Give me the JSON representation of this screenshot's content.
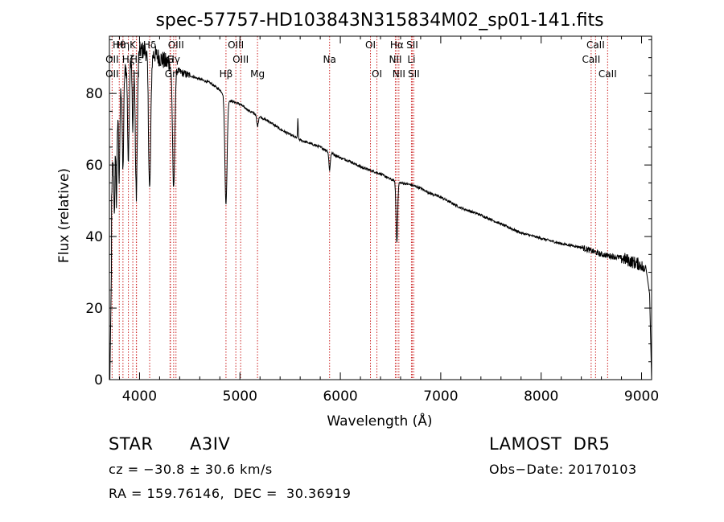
{
  "chart_data": {
    "type": "line",
    "title": "spec-57757-HD103843N315834M02_sp01-141.fits",
    "xlabel": "Wavelength (Å)",
    "ylabel": "Flux (relative)",
    "xlim": [
      3700,
      9100
    ],
    "ylim": [
      0,
      96
    ],
    "x_ticks": [
      4000,
      5000,
      6000,
      7000,
      8000,
      9000
    ],
    "y_ticks": [
      0,
      20,
      40,
      60,
      80
    ],
    "grid": false,
    "line_color": "#000000",
    "marker_color": "#cc2222",
    "continuum": {
      "x": [
        3700,
        3730,
        3760,
        3800,
        3850,
        3900,
        3950,
        4000,
        4050,
        4100,
        4150,
        4200,
        4250,
        4300,
        4350,
        4400,
        4450,
        4500,
        4600,
        4700,
        4800,
        4900,
        5000,
        5100,
        5200,
        5300,
        5400,
        5500,
        5600,
        5700,
        5800,
        5900,
        6000,
        6100,
        6200,
        6300,
        6400,
        6500,
        6600,
        6700,
        6800,
        6900,
        7000,
        7200,
        7400,
        7600,
        7800,
        8000,
        8200,
        8400,
        8600,
        8800,
        8900,
        9000,
        9030
      ],
      "y": [
        30,
        58,
        68,
        80,
        86,
        90,
        91,
        92,
        92,
        91,
        91,
        90,
        89,
        88,
        87,
        86,
        85.5,
        85,
        84,
        83,
        81,
        78,
        77,
        75,
        73.5,
        72,
        70,
        68.5,
        67,
        66,
        65,
        63.5,
        62,
        61,
        59.5,
        58.5,
        57.5,
        56,
        55,
        54.5,
        53.5,
        52,
        51,
        48,
        46,
        43.5,
        41,
        39.5,
        38,
        37,
        35,
        34,
        33,
        32,
        30
      ]
    },
    "absorption": [
      {
        "x": 3750,
        "depth": 20,
        "width": 5
      },
      {
        "x": 3771,
        "depth": 22,
        "width": 5
      },
      {
        "x": 3798,
        "depth": 24,
        "width": 6
      },
      {
        "x": 3835,
        "depth": 26,
        "width": 7
      },
      {
        "x": 3889,
        "depth": 28,
        "width": 8
      },
      {
        "x": 3933,
        "depth": 22,
        "width": 6
      },
      {
        "x": 3968,
        "depth": 40,
        "width": 10
      },
      {
        "x": 4101,
        "depth": 38,
        "width": 11
      },
      {
        "x": 4340,
        "depth": 34,
        "width": 11
      },
      {
        "x": 4861,
        "depth": 30,
        "width": 11
      },
      {
        "x": 5175,
        "depth": 3,
        "width": 8
      },
      {
        "x": 5893,
        "depth": 5,
        "width": 7
      },
      {
        "x": 6563,
        "depth": 17,
        "width": 8
      }
    ],
    "emission": [
      {
        "x": 5577,
        "height": 6,
        "width": 3
      }
    ],
    "tail": {
      "x": [
        9040,
        9060,
        9080,
        9100
      ],
      "y": [
        32,
        28,
        24,
        0
      ]
    },
    "head": {
      "x": [
        3700,
        3705,
        3710,
        3720
      ],
      "y": [
        0,
        0,
        10,
        30
      ]
    },
    "spectral_lines": [
      {
        "label": "Hθ",
        "x": 3798,
        "row": 0
      },
      {
        "label": "Hη",
        "x": 3835,
        "row": 0
      },
      {
        "label": "OII",
        "x": 3727,
        "row": 1
      },
      {
        "label": "Hζ",
        "x": 3889,
        "row": 1
      },
      {
        "label": "OII",
        "x": 3727,
        "row": 2
      },
      {
        "label": "K",
        "x": 3933,
        "row": 0
      },
      {
        "label": "Hε",
        "x": 3970,
        "row": 1
      },
      {
        "label": "H",
        "x": 3968,
        "row": 2
      },
      {
        "label": "Hδ",
        "x": 4101,
        "row": 0
      },
      {
        "label": "G",
        "x": 4304,
        "row": 1
      },
      {
        "label": "OIII",
        "x": 4363,
        "row": 0
      },
      {
        "label": "Hγ",
        "x": 4340,
        "row": 1
      },
      {
        "label": "Gr",
        "x": 4308,
        "row": 2
      },
      {
        "label": "OIII",
        "x": 4959,
        "row": 0
      },
      {
        "label": "OIII",
        "x": 5007,
        "row": 1
      },
      {
        "label": "Hβ",
        "x": 4861,
        "row": 2
      },
      {
        "label": "Mg",
        "x": 5175,
        "row": 2
      },
      {
        "label": "Na",
        "x": 5893,
        "row": 1
      },
      {
        "label": "OI",
        "x": 6300,
        "row": 0
      },
      {
        "label": "OI",
        "x": 6364,
        "row": 2
      },
      {
        "label": "Hα",
        "x": 6563,
        "row": 0
      },
      {
        "label": "NII",
        "x": 6548,
        "row": 1
      },
      {
        "label": "NII",
        "x": 6583,
        "row": 2
      },
      {
        "label": "SII",
        "x": 6716,
        "row": 0
      },
      {
        "label": "Li",
        "x": 6708,
        "row": 1
      },
      {
        "label": "SII",
        "x": 6731,
        "row": 2
      },
      {
        "label": "CaII",
        "x": 8542,
        "row": 0
      },
      {
        "label": "CaII",
        "x": 8498,
        "row": 1
      },
      {
        "label": "CaII",
        "x": 8662,
        "row": 2
      }
    ]
  },
  "info": {
    "class_label": "STAR",
    "subclass": "A3IV",
    "survey": "LAMOST  DR5",
    "cz": "cz = −30.8 ± 30.6 km/s",
    "obs_date": "Obs−Date: 20170103",
    "coords": "RA = 159.76146,  DEC =  30.36919"
  }
}
